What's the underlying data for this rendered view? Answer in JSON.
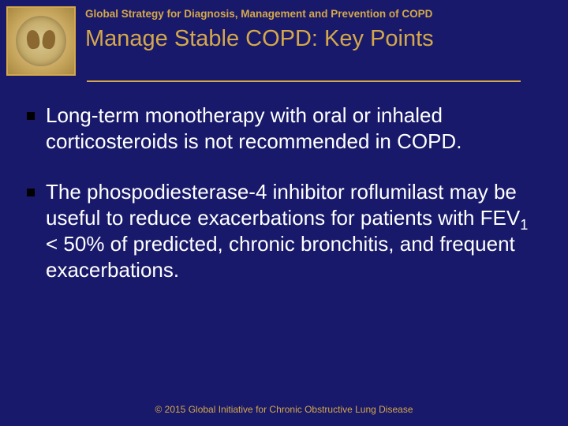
{
  "header": {
    "pretitle": "Global Strategy for Diagnosis, Management and Prevention of COPD",
    "title": "Manage Stable COPD:  Key Points"
  },
  "bullets": [
    {
      "text": "Long-term monotherapy with oral or inhaled corticosteroids is not recommended in COPD."
    },
    {
      "prefix": "The phospodiesterase-4 inhibitor roflumilast may be useful to reduce exacerbations for patients with FEV",
      "sub": "1",
      "suffix": " < 50% of predicted, chronic bronchitis, and frequent exacerbations."
    }
  ],
  "footer": "© 2015 Global Initiative for Chronic Obstructive Lung Disease",
  "colors": {
    "background": "#19196b",
    "accent": "#d4a84a",
    "text": "#ffffff",
    "bullet_marker": "#000000"
  }
}
